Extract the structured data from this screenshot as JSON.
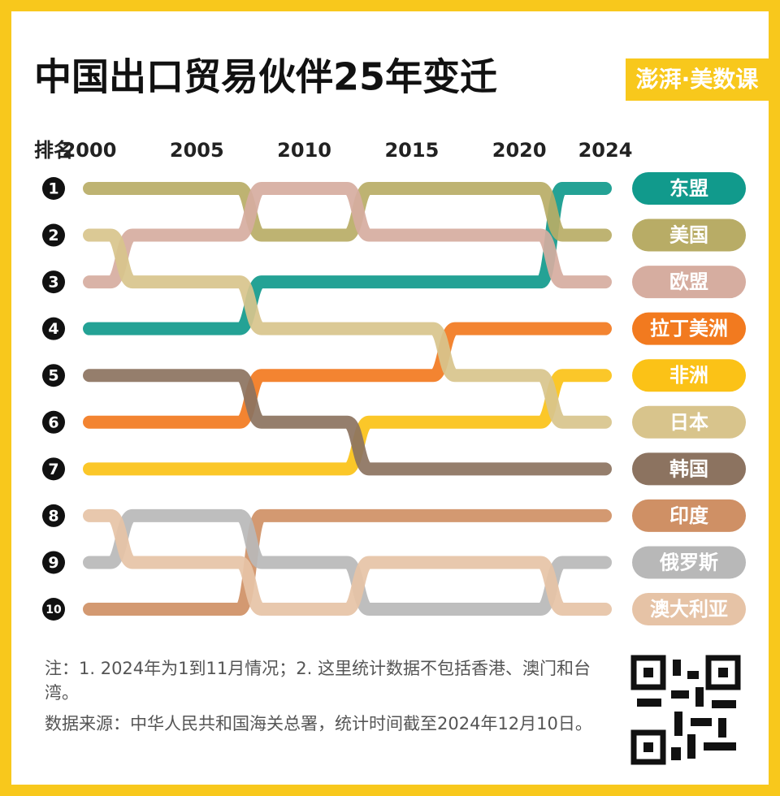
{
  "chart_data": {
    "type": "bump",
    "title": "中国出口贸易伙伴25年变迁",
    "brand": "澎湃·美数课",
    "y_label": "排名",
    "x": [
      2000,
      2001,
      2002,
      2003,
      2004,
      2005,
      2006,
      2007,
      2008,
      2009,
      2010,
      2011,
      2012,
      2013,
      2014,
      2015,
      2016,
      2017,
      2018,
      2019,
      2020,
      2021,
      2022,
      2023,
      2024
    ],
    "xlim": [
      2000,
      2024
    ],
    "xticks": [
      2000,
      2005,
      2010,
      2015,
      2020,
      2024
    ],
    "ylim": [
      1,
      10
    ],
    "y_inverted": true,
    "yticks": [
      1,
      2,
      3,
      4,
      5,
      6,
      7,
      8,
      9,
      10
    ],
    "series": [
      {
        "name": "东盟",
        "color": "#119a8c",
        "values": [
          4,
          4,
          4,
          4,
          4,
          4,
          4,
          4,
          3,
          3,
          3,
          3,
          3,
          3,
          3,
          3,
          3,
          3,
          3,
          3,
          3,
          3,
          1,
          1,
          1
        ]
      },
      {
        "name": "美国",
        "color": "#b8ac66",
        "values": [
          1,
          1,
          1,
          1,
          1,
          1,
          1,
          1,
          2,
          2,
          2,
          2,
          2,
          1,
          1,
          1,
          1,
          1,
          1,
          1,
          1,
          1,
          2,
          2,
          2
        ]
      },
      {
        "name": "欧盟",
        "color": "#d6ada0",
        "values": [
          3,
          3,
          2,
          2,
          2,
          2,
          2,
          2,
          1,
          1,
          1,
          1,
          1,
          2,
          2,
          2,
          2,
          2,
          2,
          2,
          2,
          2,
          3,
          3,
          3
        ]
      },
      {
        "name": "拉丁美洲",
        "color": "#f27a1f",
        "values": [
          6,
          6,
          6,
          6,
          6,
          6,
          6,
          6,
          5,
          5,
          5,
          5,
          5,
          5,
          5,
          5,
          5,
          4,
          4,
          4,
          4,
          4,
          4,
          4,
          4
        ]
      },
      {
        "name": "非洲",
        "color": "#fbc217",
        "values": [
          7,
          7,
          7,
          7,
          7,
          7,
          7,
          7,
          7,
          7,
          7,
          7,
          7,
          6,
          6,
          6,
          6,
          6,
          6,
          6,
          6,
          6,
          5,
          5,
          5
        ]
      },
      {
        "name": "日本",
        "color": "#d8c48c",
        "values": [
          2,
          2,
          3,
          3,
          3,
          3,
          3,
          3,
          4,
          4,
          4,
          4,
          4,
          4,
          4,
          4,
          4,
          5,
          5,
          5,
          5,
          5,
          6,
          6,
          6
        ]
      },
      {
        "name": "韩国",
        "color": "#8c7360",
        "values": [
          5,
          5,
          5,
          5,
          5,
          5,
          5,
          5,
          6,
          6,
          6,
          6,
          6,
          7,
          7,
          7,
          7,
          7,
          7,
          7,
          7,
          7,
          7,
          7,
          7
        ]
      },
      {
        "name": "印度",
        "color": "#cf9065",
        "values": [
          10,
          10,
          10,
          10,
          10,
          10,
          10,
          10,
          8,
          8,
          8,
          8,
          8,
          8,
          8,
          8,
          8,
          8,
          8,
          8,
          8,
          8,
          8,
          8,
          8
        ]
      },
      {
        "name": "俄罗斯",
        "color": "#b8b8b8",
        "values": [
          9,
          9,
          8,
          8,
          8,
          8,
          8,
          8,
          9,
          9,
          9,
          9,
          9,
          10,
          10,
          10,
          10,
          10,
          10,
          10,
          10,
          10,
          9,
          9,
          9
        ]
      },
      {
        "name": "澳大利亚",
        "color": "#e6c3a6",
        "values": [
          8,
          8,
          9,
          9,
          9,
          9,
          9,
          9,
          10,
          10,
          10,
          10,
          10,
          9,
          9,
          9,
          9,
          9,
          9,
          9,
          9,
          9,
          10,
          10,
          10
        ]
      }
    ],
    "notes": [
      "注：1. 2024年为1到11月情况；2. 这里统计数据不包括香港、澳门和台湾。",
      "数据来源：中华人民共和国海关总署，统计时间截至2024年12月10日。"
    ]
  }
}
